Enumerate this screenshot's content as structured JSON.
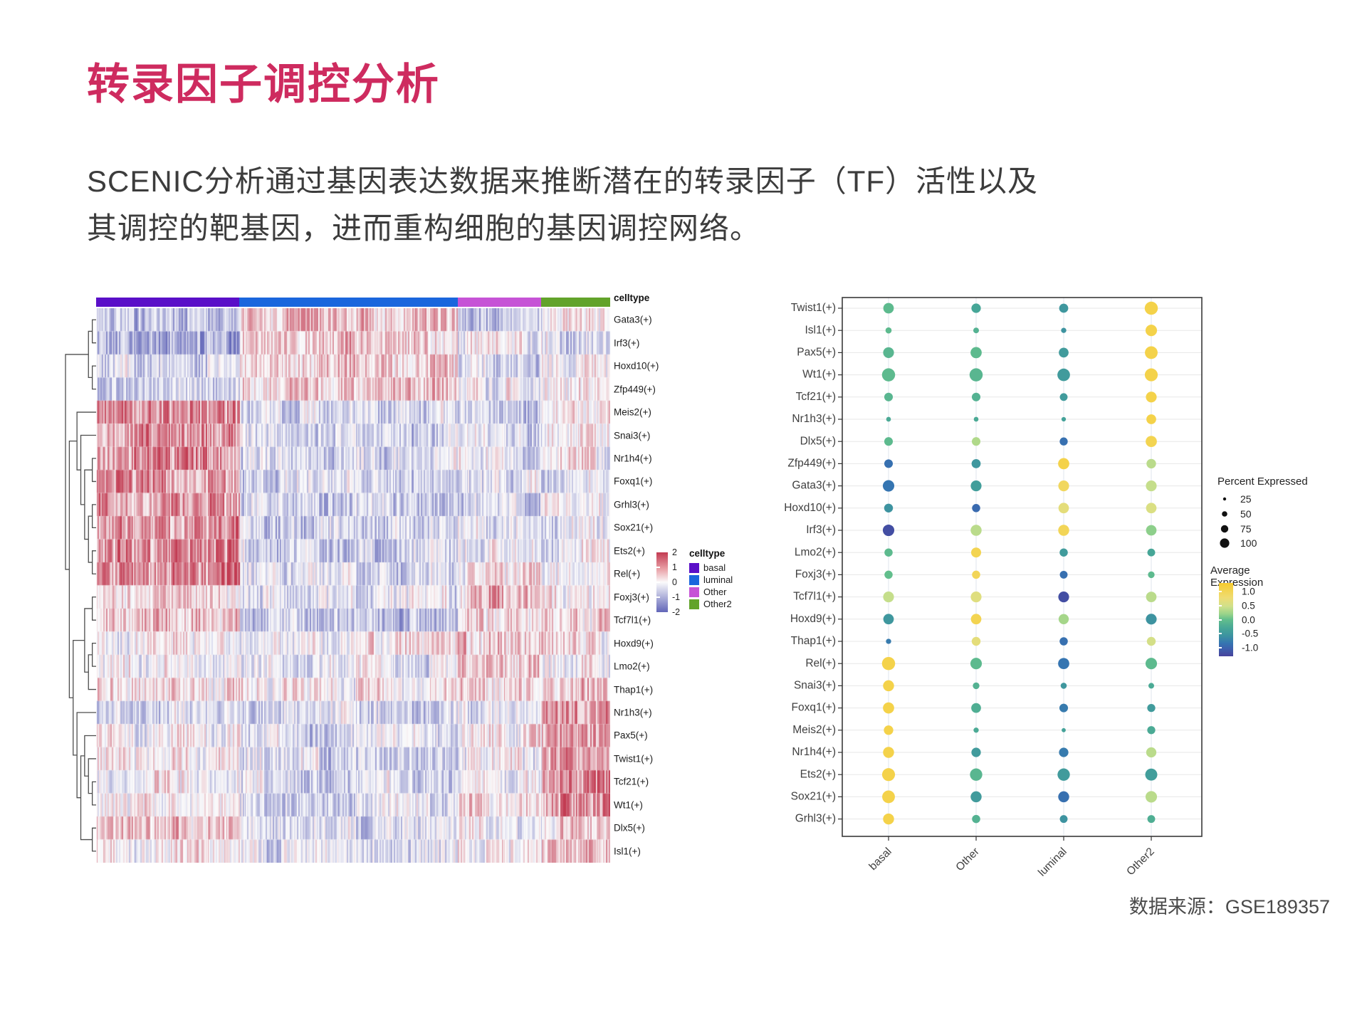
{
  "slide": {
    "title": "转录因子调控分析",
    "body_line1": "SCENIC分析通过基因表达数据来推断潜在的转录因子（TF）活性以及",
    "body_line2": "其调控的靶基因，进而重构细胞的基因调控网络。",
    "source_note": "数据来源：GSE189357",
    "accent_color": "#CE2B5F"
  },
  "chart_data": [
    {
      "type": "heatmap",
      "title": "",
      "annotation_label": "celltype",
      "column_groups": [
        {
          "name": "basal",
          "color": "#5A0FC8",
          "fraction": 0.279
        },
        {
          "name": "luminal",
          "color": "#1A66DD",
          "fraction": 0.424
        },
        {
          "name": "Other",
          "color": "#C653D6",
          "fraction": 0.162
        },
        {
          "name": "Other2",
          "color": "#62A32A",
          "fraction": 0.135
        }
      ],
      "rows": [
        {
          "label": "Gata3(+)",
          "group_bias": [
            -0.5,
            0.45,
            -0.45,
            0.1
          ]
        },
        {
          "label": "Irf3(+)",
          "group_bias": [
            -0.85,
            0.45,
            -0.1,
            -0.2
          ]
        },
        {
          "label": "Hoxd10(+)",
          "group_bias": [
            -0.25,
            0.4,
            -0.3,
            0.05
          ]
        },
        {
          "label": "Zfp449(+)",
          "group_bias": [
            -0.4,
            0.3,
            -0.1,
            0.0
          ]
        },
        {
          "label": "Meis2(+)",
          "group_bias": [
            0.8,
            -0.35,
            -0.35,
            0.15
          ]
        },
        {
          "label": "Snai3(+)",
          "group_bias": [
            0.7,
            -0.3,
            -0.25,
            0.05
          ]
        },
        {
          "label": "Nr1h4(+)",
          "group_bias": [
            0.75,
            -0.35,
            -0.1,
            0.0
          ]
        },
        {
          "label": "Foxq1(+)",
          "group_bias": [
            0.8,
            -0.4,
            -0.3,
            -0.15
          ]
        },
        {
          "label": "Grhl3(+)",
          "group_bias": [
            0.75,
            -0.4,
            -0.3,
            0.0
          ]
        },
        {
          "label": "Sox21(+)",
          "group_bias": [
            0.8,
            -0.45,
            -0.15,
            -0.2
          ]
        },
        {
          "label": "Ets2(+)",
          "group_bias": [
            0.9,
            -0.4,
            -0.1,
            -0.2
          ]
        },
        {
          "label": "Rel(+)",
          "group_bias": [
            0.85,
            -0.3,
            0.1,
            0.0
          ]
        },
        {
          "label": "Foxj3(+)",
          "group_bias": [
            0.2,
            -0.2,
            0.45,
            0.1
          ]
        },
        {
          "label": "Tcf7l1(+)",
          "group_bias": [
            0.3,
            -0.5,
            0.25,
            0.3
          ]
        },
        {
          "label": "Hoxd9(+)",
          "group_bias": [
            0.05,
            0.1,
            0.4,
            0.15
          ]
        },
        {
          "label": "Lmo2(+)",
          "group_bias": [
            0.1,
            -0.2,
            0.35,
            0.05
          ]
        },
        {
          "label": "Thap1(+)",
          "group_bias": [
            0.2,
            0.0,
            0.25,
            0.3
          ]
        },
        {
          "label": "Nr1h3(+)",
          "group_bias": [
            -0.3,
            -0.35,
            -0.2,
            0.7
          ]
        },
        {
          "label": "Pax5(+)",
          "group_bias": [
            0.0,
            -0.3,
            0.0,
            0.8
          ]
        },
        {
          "label": "Twist1(+)",
          "group_bias": [
            0.05,
            -0.3,
            0.0,
            0.8
          ]
        },
        {
          "label": "Tcf21(+)",
          "group_bias": [
            0.0,
            -0.25,
            0.0,
            0.8
          ]
        },
        {
          "label": "Wt1(+)",
          "group_bias": [
            0.0,
            -0.3,
            0.2,
            0.9
          ]
        },
        {
          "label": "Dlx5(+)",
          "group_bias": [
            0.4,
            -0.3,
            0.0,
            0.3
          ]
        },
        {
          "label": "Isl1(+)",
          "group_bias": [
            0.1,
            -0.3,
            0.0,
            0.4
          ]
        }
      ],
      "scale": {
        "ticks": [
          "2",
          "1",
          "0",
          "-1",
          "-2"
        ],
        "max_color": "#C23B52",
        "mid_color": "#FAFAFB",
        "min_color": "#6266B8",
        "range": [
          -2,
          2
        ]
      },
      "legend_title": "celltype",
      "dendrogram": [
        [
          [
            0,
            1
          ],
          [
            2,
            3
          ]
        ],
        [
          [
            4,
            [
              5,
              [
                [
                  6,
                  7
                ],
                [
                  [
                    8,
                    9
                  ],
                  [
                    10,
                    11
                  ]
                ]
              ]
            ]
          ],
          [
            [
              [
                12,
                13
              ],
              [
                [
                  14,
                  15
                ],
                16
              ]
            ],
            [
              17,
              [
                [
                  18,
                  [
                    19,
                    [
                      20,
                      21
                    ]
                  ]
                ],
                [
                  22,
                  23
                ]
              ]
            ]
          ]
        ]
      ],
      "note": "cell values are scaled regulon activity (-2..2); stripe texture procedurally generated from group_bias"
    },
    {
      "type": "dotplot",
      "categories": [
        "basal",
        "Other",
        "luminal",
        "Other2"
      ],
      "genes": [
        "Twist1(+)",
        "Isl1(+)",
        "Pax5(+)",
        "Wt1(+)",
        "Tcf21(+)",
        "Nr1h3(+)",
        "Dlx5(+)",
        "Zfp449(+)",
        "Gata3(+)",
        "Hoxd10(+)",
        "Irf3(+)",
        "Lmo2(+)",
        "Foxj3(+)",
        "Tcf7l1(+)",
        "Hoxd9(+)",
        "Thap1(+)",
        "Rel(+)",
        "Snai3(+)",
        "Foxq1(+)",
        "Meis2(+)",
        "Nr1h4(+)",
        "Ets2(+)",
        "Sox21(+)",
        "Grhl3(+)"
      ],
      "percent_expressed": [
        [
          45,
          35,
          32,
          75
        ],
        [
          12,
          10,
          8,
          55
        ],
        [
          48,
          52,
          38,
          70
        ],
        [
          75,
          75,
          68,
          72
        ],
        [
          28,
          28,
          22,
          48
        ],
        [
          6,
          6,
          5,
          38
        ],
        [
          28,
          28,
          24,
          52
        ],
        [
          28,
          32,
          52,
          36
        ],
        [
          55,
          48,
          48,
          48
        ],
        [
          30,
          25,
          45,
          45
        ],
        [
          55,
          50,
          50,
          45
        ],
        [
          25,
          40,
          25,
          22
        ],
        [
          25,
          25,
          22,
          15
        ],
        [
          48,
          48,
          48,
          45
        ],
        [
          45,
          45,
          42,
          48
        ],
        [
          8,
          30,
          25,
          30
        ],
        [
          75,
          55,
          52,
          55
        ],
        [
          50,
          15,
          12,
          10
        ],
        [
          52,
          38,
          28,
          24
        ],
        [
          35,
          8,
          4,
          24
        ],
        [
          50,
          35,
          35,
          42
        ],
        [
          72,
          65,
          65,
          62
        ],
        [
          70,
          50,
          50,
          55
        ],
        [
          50,
          25,
          22,
          22
        ]
      ],
      "average_expression": [
        [
          -0.1,
          -0.35,
          -0.55,
          1.0
        ],
        [
          -0.1,
          -0.2,
          -0.6,
          1.0
        ],
        [
          -0.15,
          -0.1,
          -0.5,
          1.0
        ],
        [
          -0.1,
          -0.15,
          -0.5,
          1.0
        ],
        [
          -0.15,
          -0.2,
          -0.5,
          1.0
        ],
        [
          -0.3,
          -0.3,
          -0.4,
          1.0
        ],
        [
          -0.1,
          0.25,
          -0.9,
          0.95
        ],
        [
          -0.9,
          -0.55,
          1.0,
          0.3
        ],
        [
          -0.85,
          -0.45,
          0.85,
          0.35
        ],
        [
          -0.6,
          -0.95,
          0.6,
          0.5
        ],
        [
          -1.2,
          0.3,
          0.9,
          0.1
        ],
        [
          -0.1,
          0.95,
          -0.5,
          -0.35
        ],
        [
          -0.05,
          0.9,
          -0.9,
          -0.1
        ],
        [
          0.35,
          0.55,
          -1.2,
          0.3
        ],
        [
          -0.55,
          0.95,
          0.2,
          -0.6
        ],
        [
          -0.8,
          0.6,
          -0.9,
          0.45
        ],
        [
          1.0,
          -0.1,
          -0.85,
          -0.1
        ],
        [
          1.0,
          -0.2,
          -0.55,
          -0.3
        ],
        [
          1.0,
          -0.25,
          -0.8,
          -0.5
        ],
        [
          1.0,
          -0.3,
          -0.4,
          -0.3
        ],
        [
          1.0,
          -0.5,
          -0.8,
          0.3
        ],
        [
          1.0,
          -0.15,
          -0.5,
          -0.45
        ],
        [
          1.0,
          -0.5,
          -0.9,
          0.3
        ],
        [
          1.0,
          -0.2,
          -0.6,
          -0.25
        ]
      ],
      "legend_percent": {
        "title": "Percent Expressed",
        "sizes": [
          "25",
          "50",
          "75",
          "100"
        ]
      },
      "legend_expression": {
        "title": "Average Expression",
        "ticks": [
          "1.0",
          "0.5",
          "0.0",
          "-0.5",
          "-1.0"
        ],
        "range": [
          -1.3,
          1.3
        ]
      },
      "color_stops": [
        [
          1.2,
          "#F7CB2F"
        ],
        [
          0.7,
          "#EFDC72"
        ],
        [
          0.4,
          "#CFE08B"
        ],
        [
          0.15,
          "#9BD48A"
        ],
        [
          -0.05,
          "#62BE8C"
        ],
        [
          -0.35,
          "#46A697"
        ],
        [
          -0.6,
          "#3D93A0"
        ],
        [
          -0.85,
          "#3575B1"
        ],
        [
          -1.05,
          "#3D5FAD"
        ],
        [
          -1.3,
          "#47439C"
        ]
      ],
      "grid": true,
      "legend_position": "right"
    }
  ]
}
